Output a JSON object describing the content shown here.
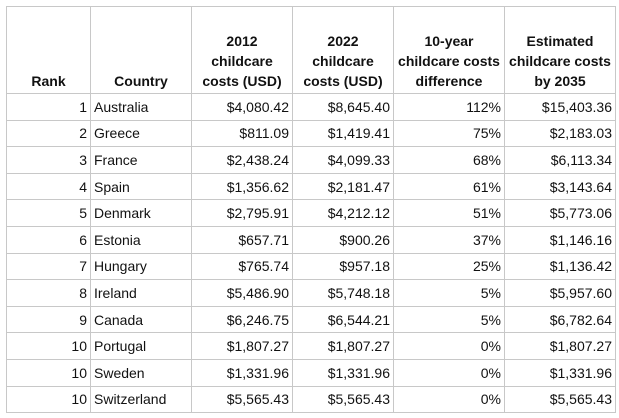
{
  "headers": [
    "Rank",
    "Country",
    "2012 childcare costs (USD)",
    "2022 childcare costs (USD)",
    "10-year childcare costs difference",
    "Estimated childcare costs by 2035"
  ],
  "rows": [
    [
      "1",
      "Australia",
      "$4,080.42",
      "$8,645.40",
      "112%",
      "$15,403.36"
    ],
    [
      "2",
      "Greece",
      "$811.09",
      "$1,419.41",
      "75%",
      "$2,183.03"
    ],
    [
      "3",
      "France",
      "$2,438.24",
      "$4,099.33",
      "68%",
      "$6,113.34"
    ],
    [
      "4",
      "Spain",
      "$1,356.62",
      "$2,181.47",
      "61%",
      "$3,143.64"
    ],
    [
      "5",
      "Denmark",
      "$2,795.91",
      "$4,212.12",
      "51%",
      "$5,773.06"
    ],
    [
      "6",
      "Estonia",
      "$657.71",
      "$900.26",
      "37%",
      "$1,146.16"
    ],
    [
      "7",
      "Hungary",
      "$765.74",
      "$957.18",
      "25%",
      "$1,136.42"
    ],
    [
      "8",
      "Ireland",
      "$5,486.90",
      "$5,748.18",
      "5%",
      "$5,957.60"
    ],
    [
      "9",
      "Canada",
      "$6,246.75",
      "$6,544.21",
      "5%",
      "$6,782.64"
    ],
    [
      "10",
      "Portugal",
      "$1,807.27",
      "$1,807.27",
      "0%",
      "$1,807.27"
    ],
    [
      "10",
      "Sweden",
      "$1,331.96",
      "$1,331.96",
      "0%",
      "$1,331.96"
    ],
    [
      "10",
      "Switzerland",
      "$5,565.43",
      "$5,565.43",
      "0%",
      "$5,565.43"
    ]
  ]
}
